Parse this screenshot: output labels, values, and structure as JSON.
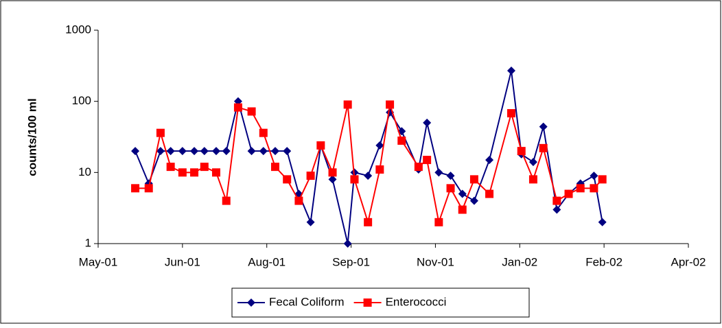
{
  "chart_data": {
    "type": "line",
    "y_label": "counts/100 ml",
    "log_scale_y": true,
    "ylim": [
      1,
      1000
    ],
    "yticks": [
      1,
      10,
      100,
      1000
    ],
    "xlim": [
      0,
      350
    ],
    "xticks": [
      {
        "value": 0,
        "label": "May-01"
      },
      {
        "value": 50,
        "label": "Jun-01"
      },
      {
        "value": 100,
        "label": "Aug-01"
      },
      {
        "value": 150,
        "label": "Sep-01"
      },
      {
        "value": 200,
        "label": "Nov-01"
      },
      {
        "value": 250,
        "label": "Jan-02"
      },
      {
        "value": 300,
        "label": "Feb-02"
      },
      {
        "value": 350,
        "label": "Apr-02"
      }
    ],
    "x": [
      22,
      30,
      37,
      43,
      50,
      57,
      63,
      70,
      76,
      83,
      91,
      98,
      105,
      112,
      119,
      126,
      132,
      139,
      148,
      152,
      160,
      167,
      173,
      180,
      190,
      195,
      202,
      209,
      216,
      223,
      232,
      245,
      251,
      258,
      264,
      272,
      279,
      286,
      294,
      299
    ],
    "legend": "bottom",
    "series": [
      {
        "name": "Fecal Coliform",
        "color": "#000080",
        "marker": "diamond",
        "values": [
          20,
          7,
          20,
          20,
          20,
          20,
          20,
          20,
          20,
          100,
          20,
          20,
          20,
          20,
          5,
          2,
          24,
          8,
          1,
          10,
          9,
          24,
          70,
          38,
          11,
          50,
          10,
          9,
          5,
          4,
          15,
          270,
          18,
          14,
          44,
          3,
          5,
          7,
          9,
          2
        ]
      },
      {
        "name": "Enterococci",
        "color": "#ff0000",
        "marker": "square",
        "values": [
          6,
          6,
          36,
          12,
          10,
          10,
          12,
          10,
          4,
          82,
          72,
          36,
          12,
          8,
          4,
          9,
          24,
          10,
          90,
          8,
          2,
          11,
          90,
          28,
          12,
          15,
          2,
          6,
          3,
          8,
          5,
          68,
          20,
          8,
          22,
          4,
          5,
          6,
          6,
          8
        ]
      }
    ]
  }
}
